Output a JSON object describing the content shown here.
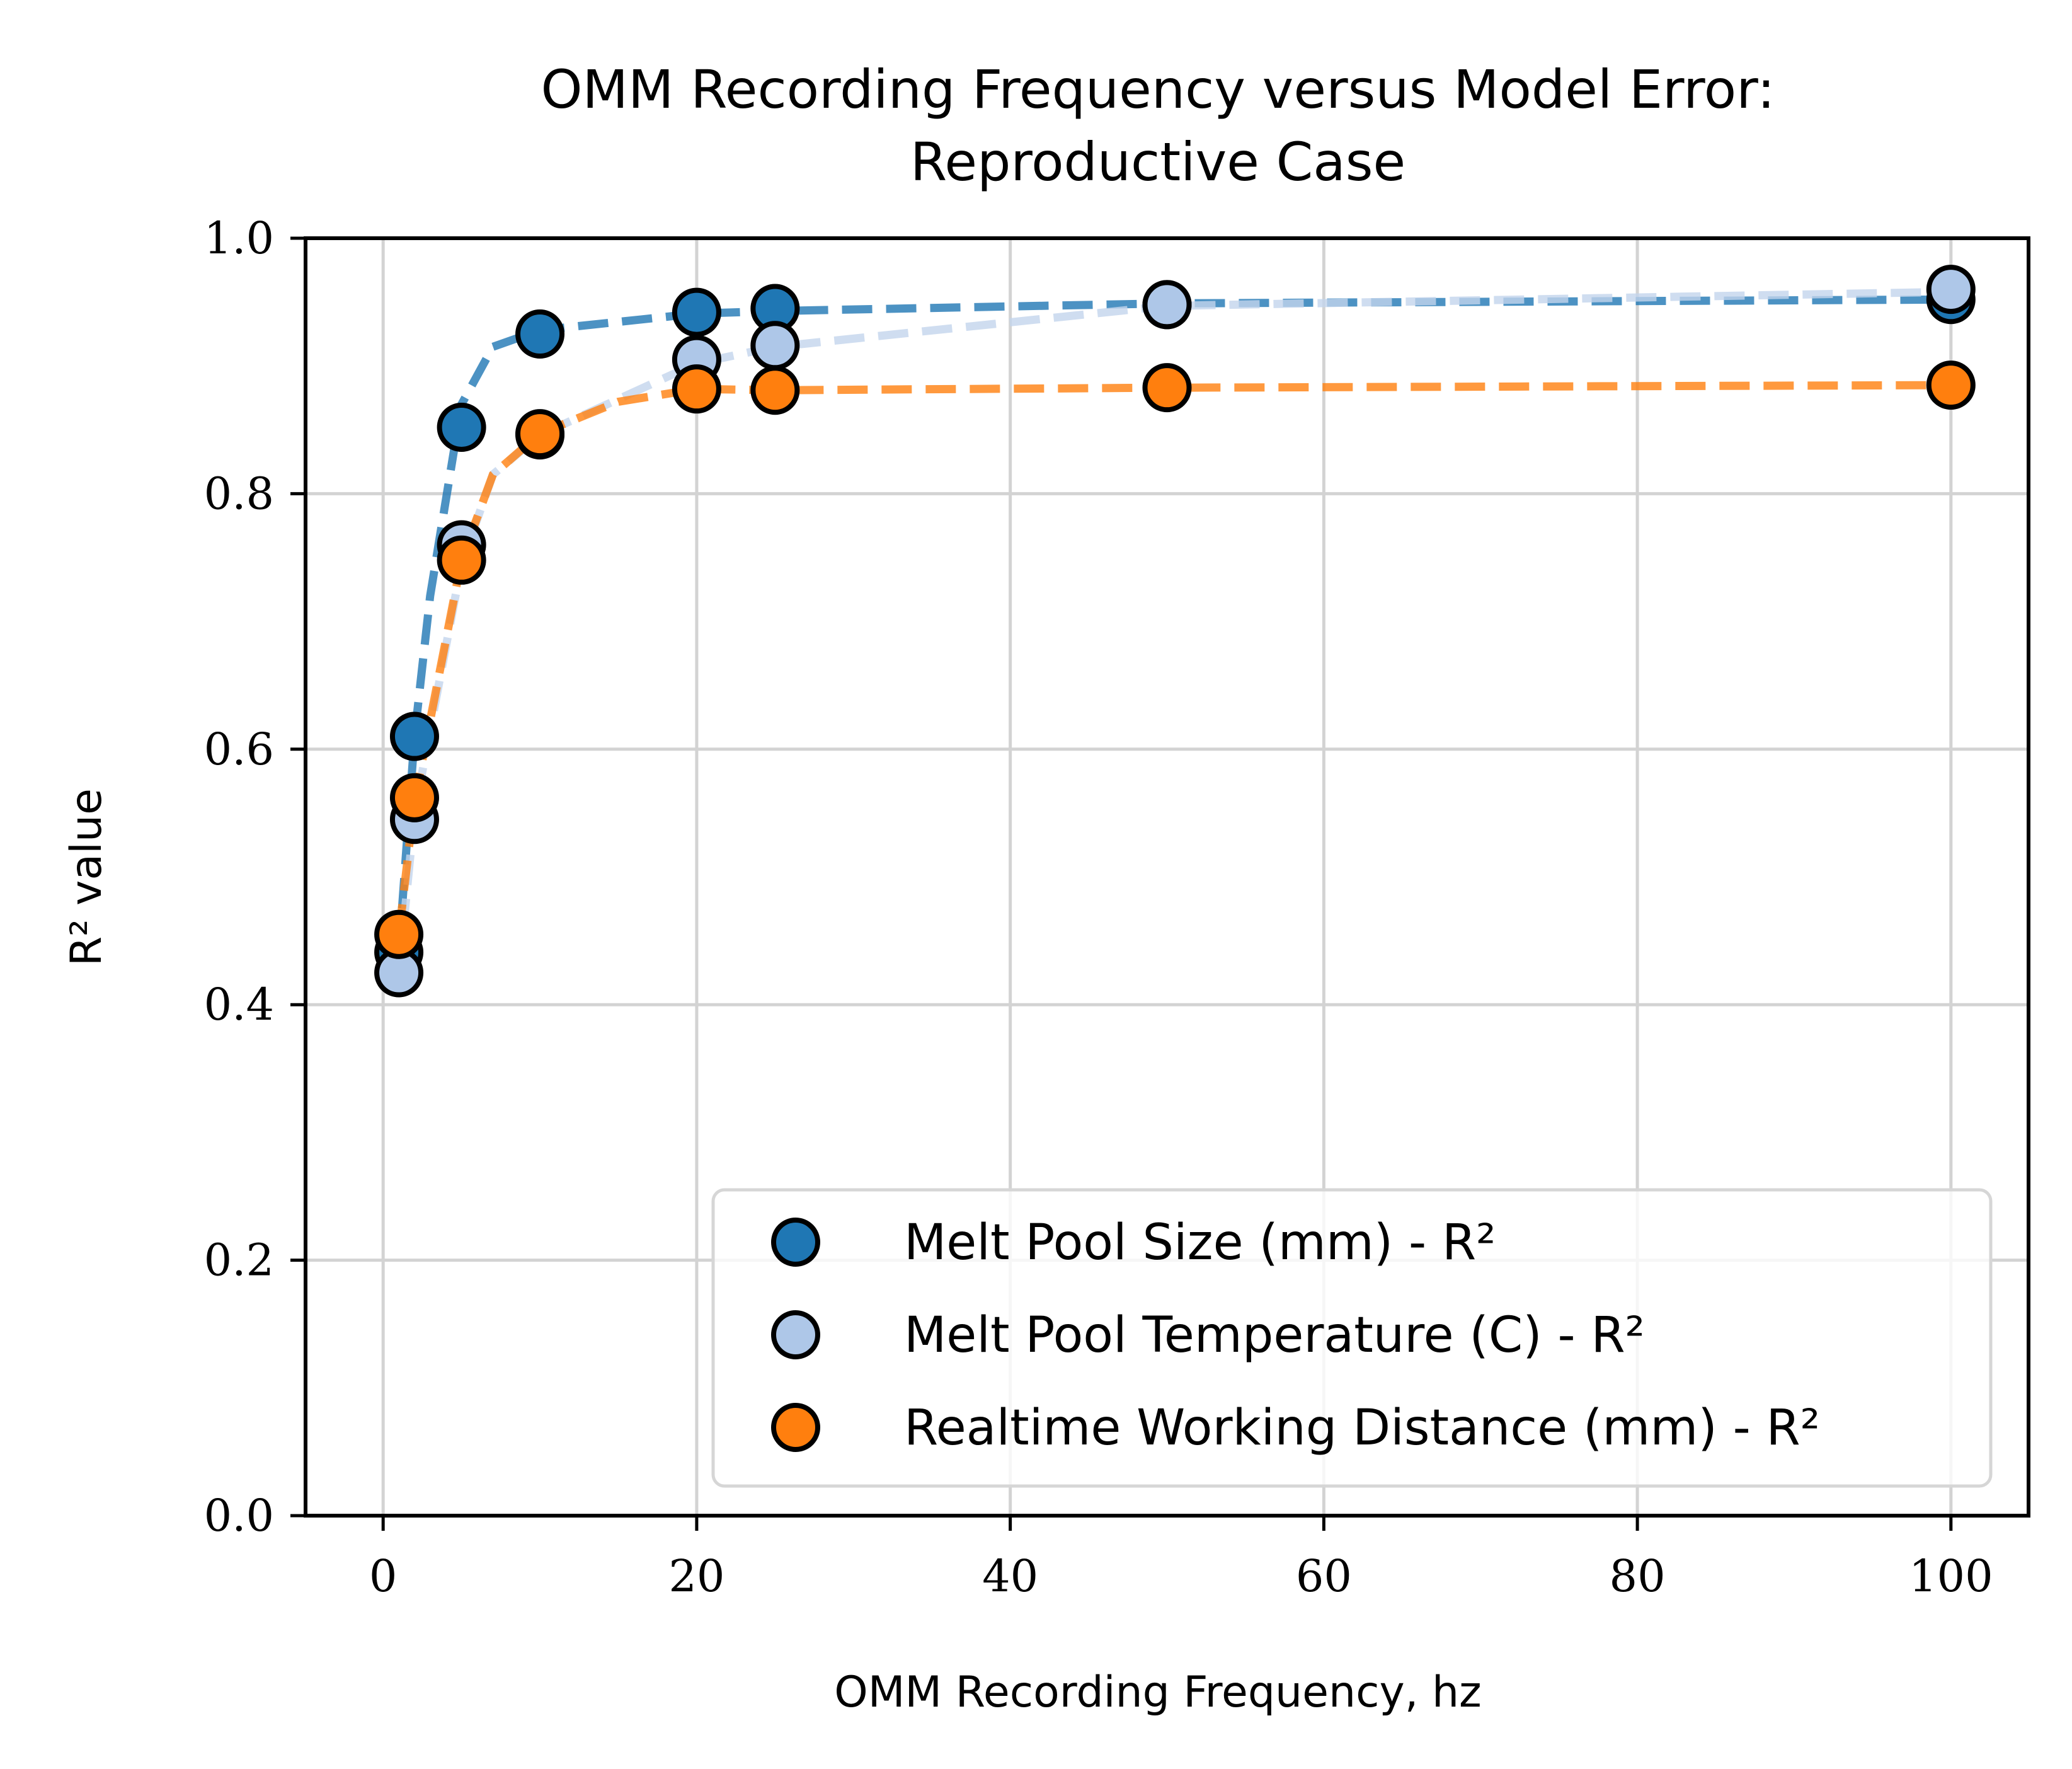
{
  "chart_data": {
    "type": "scatter",
    "title_lines": [
      "OMM Recording Frequency versus Model Error:",
      "Reproductive Case"
    ],
    "xlabel": "OMM Recording Frequency, hz",
    "ylabel": "R² value",
    "xlim": [
      -4.95,
      104.95
    ],
    "ylim": [
      0.0,
      1.0
    ],
    "xticks": [
      0,
      20,
      40,
      60,
      80,
      100
    ],
    "xtick_labels": [
      "0",
      "20",
      "40",
      "60",
      "80",
      "100"
    ],
    "yticks": [
      0.0,
      0.2,
      0.4,
      0.6,
      0.8,
      1.0
    ],
    "ytick_labels": [
      "0.0",
      "0.2",
      "0.4",
      "0.6",
      "0.8",
      "1.0"
    ],
    "grid": true,
    "legend_position": "lower-right",
    "series": [
      {
        "name": "Melt Pool Size (mm) - R²",
        "color": "#1f77b4",
        "x": [
          1,
          2,
          5,
          10,
          20,
          25,
          50,
          100
        ],
        "y": [
          0.441,
          0.61,
          0.852,
          0.925,
          0.942,
          0.945,
          0.948,
          0.952
        ],
        "fit_x": [
          1,
          2,
          3,
          5,
          7,
          10,
          20,
          25,
          50,
          100
        ],
        "fit_y": [
          0.441,
          0.61,
          0.72,
          0.87,
          0.915,
          0.928,
          0.941,
          0.943,
          0.949,
          0.952
        ]
      },
      {
        "name": "Melt Pool Temperature (C) - R²",
        "color": "#aec7e8",
        "x": [
          1,
          2,
          5,
          10,
          20,
          25,
          50,
          100
        ],
        "y": [
          0.425,
          0.545,
          0.76,
          0.846,
          0.905,
          0.916,
          0.948,
          0.96
        ],
        "fit_x": [
          1,
          2,
          5,
          7,
          10,
          20,
          25,
          50,
          100
        ],
        "fit_y": [
          0.425,
          0.55,
          0.745,
          0.815,
          0.846,
          0.902,
          0.915,
          0.947,
          0.958
        ],
        "fit_color": "#c3d5ec"
      },
      {
        "name": "Realtime Working Distance (mm) - R²",
        "color": "#ff7f0e",
        "x": [
          1,
          2,
          5,
          10,
          20,
          25,
          50,
          100
        ],
        "y": [
          0.455,
          0.562,
          0.748,
          0.847,
          0.882,
          0.881,
          0.883,
          0.885
        ],
        "fit_x": [
          1,
          2,
          5,
          7,
          10,
          15,
          20,
          25,
          50,
          100
        ],
        "fit_y": [
          0.455,
          0.56,
          0.748,
          0.815,
          0.847,
          0.872,
          0.882,
          0.881,
          0.883,
          0.885
        ]
      }
    ]
  }
}
